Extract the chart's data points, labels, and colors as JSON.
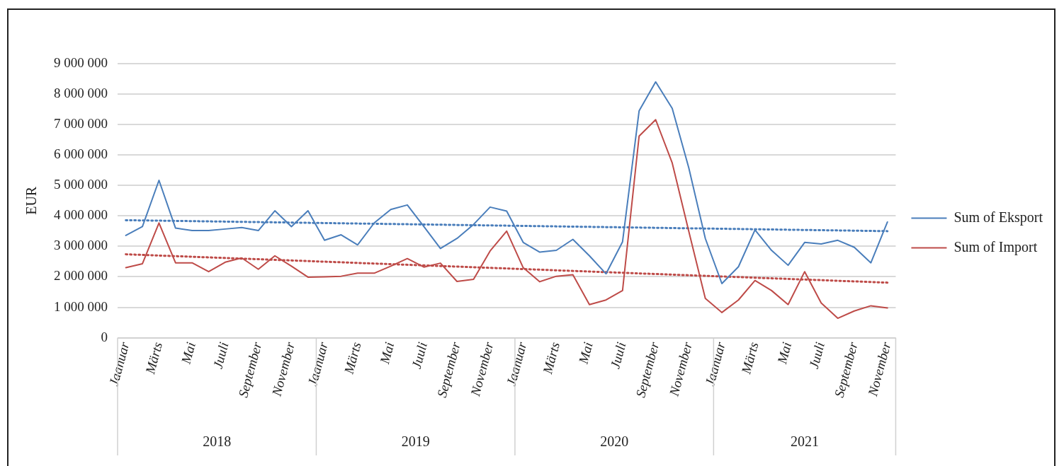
{
  "chart_data": {
    "type": "line",
    "ylabel": "EUR",
    "categories": [
      "Jaanuar",
      null,
      "Märts",
      null,
      "Mai",
      null,
      "Juuli",
      null,
      "September",
      null,
      "November",
      null,
      "Jaanuar",
      null,
      "Märts",
      null,
      "Mai",
      null,
      "Juuli",
      null,
      "September",
      null,
      "November",
      null,
      "Jaanuar",
      null,
      "Märts",
      null,
      "Mai",
      null,
      "Juuli",
      null,
      "September",
      null,
      "November",
      null,
      "Jaanuar",
      null,
      "Märts",
      null,
      "Mai",
      null,
      "Juuli",
      null,
      "September",
      null,
      "November"
    ],
    "series": [
      {
        "name": "Sum of Eksport",
        "color": "#4a7ebb",
        "values": [
          3360000,
          3650000,
          5170000,
          3600000,
          3520000,
          3520000,
          3570000,
          3620000,
          3520000,
          4170000,
          3650000,
          4170000,
          3200000,
          3380000,
          3050000,
          3770000,
          4210000,
          4360000,
          3650000,
          2930000,
          3260000,
          3720000,
          4290000,
          4160000,
          3130000,
          2810000,
          2870000,
          3230000,
          2690000,
          2100000,
          3150000,
          7450000,
          8400000,
          7530000,
          5580000,
          3260000,
          1780000,
          2330000,
          3540000,
          2870000,
          2380000,
          3130000,
          3080000,
          3200000,
          2970000,
          2460000,
          3800000
        ]
      },
      {
        "name": "Sum of Import",
        "color": "#be4b48",
        "values": [
          2300000,
          2430000,
          3770000,
          2460000,
          2460000,
          2170000,
          2480000,
          2620000,
          2250000,
          2690000,
          2350000,
          1990000,
          2000000,
          2020000,
          2120000,
          2120000,
          2350000,
          2600000,
          2320000,
          2450000,
          1850000,
          1920000,
          2850000,
          3500000,
          2300000,
          1840000,
          2020000,
          2070000,
          1090000,
          1240000,
          1550000,
          6620000,
          7160000,
          5740000,
          3500000,
          1290000,
          830000,
          1240000,
          1880000,
          1550000,
          1090000,
          2170000,
          1140000,
          640000,
          880000,
          1050000,
          980000
        ]
      },
      {
        "type": "line",
        "color": "#4a7ebb",
        "line_style": "dotted",
        "values": [
          3860000,
          null,
          null,
          null,
          null,
          null,
          null,
          null,
          null,
          null,
          null,
          null,
          null,
          null,
          null,
          null,
          null,
          null,
          null,
          null,
          null,
          null,
          null,
          null,
          null,
          null,
          null,
          null,
          null,
          null,
          null,
          null,
          null,
          null,
          null,
          null,
          null,
          null,
          null,
          null,
          null,
          null,
          null,
          null,
          null,
          null,
          3500000
        ]
      },
      {
        "type": "line",
        "color": "#be4b48",
        "line_style": "dotted",
        "values": [
          2740000,
          null,
          null,
          null,
          null,
          null,
          null,
          null,
          null,
          null,
          null,
          null,
          null,
          null,
          null,
          null,
          null,
          null,
          null,
          null,
          null,
          null,
          null,
          null,
          null,
          null,
          null,
          null,
          null,
          null,
          null,
          null,
          null,
          null,
          null,
          null,
          null,
          null,
          null,
          null,
          null,
          null,
          null,
          null,
          null,
          null,
          1810000
        ]
      }
    ],
    "ylim": [
      0,
      9000000
    ],
    "yticks": [
      0,
      {
        "value": 1000000,
        "label": "1 000 000"
      },
      {
        "value": 2000000,
        "label": "2 000 000"
      },
      {
        "value": 3000000,
        "label": "3 000 000"
      },
      {
        "value": 4000000,
        "label": "4 000 000"
      },
      {
        "value": 5000000,
        "label": "5 000 000"
      },
      {
        "value": 6000000,
        "label": "6 000 000"
      },
      {
        "value": 7000000,
        "label": "7 000 000"
      },
      {
        "value": 8000000,
        "label": "8 000 000"
      },
      {
        "value": 9000000,
        "label": "9 000 000"
      }
    ],
    "annotations": [
      "2018",
      "2019",
      "2020",
      "2021"
    ],
    "grid": "y",
    "legend": "right",
    "marker": "none",
    "line_style": "solid"
  }
}
